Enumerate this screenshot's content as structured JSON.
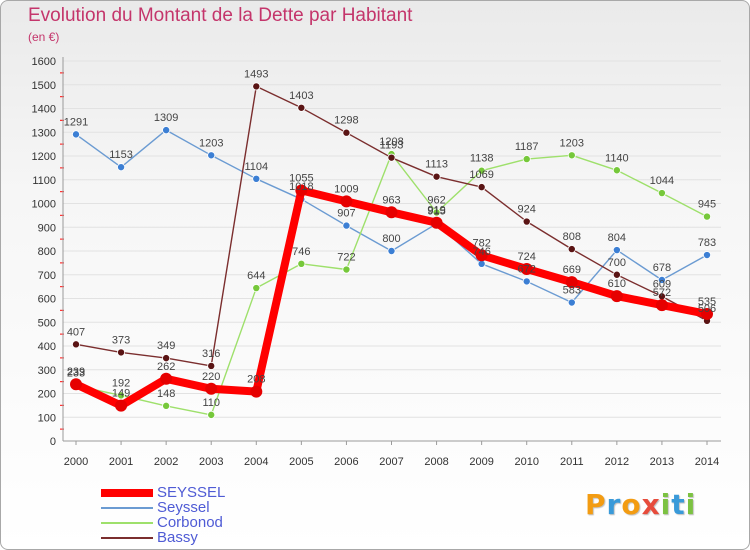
{
  "chart_data": {
    "type": "line",
    "title": "Evolution du Montant de la Dette par Habitant",
    "subtitle": "(en €)",
    "xlabel": "",
    "ylabel": "",
    "categories": [
      "2000",
      "2001",
      "2002",
      "2003",
      "2004",
      "2005",
      "2006",
      "2007",
      "2008",
      "2009",
      "2010",
      "2011",
      "2012",
      "2013",
      "2014"
    ],
    "ylim": [
      0,
      1600
    ],
    "yticks": [
      0,
      100,
      200,
      300,
      400,
      500,
      600,
      700,
      800,
      900,
      1000,
      1100,
      1200,
      1300,
      1400,
      1500,
      1600
    ],
    "grid": true,
    "data_labels": true,
    "legend_position": "bottom-left",
    "series": [
      {
        "name": "SEYSSEL",
        "color": "#ff0000",
        "marker_color": "#e60000",
        "values": [
          239,
          149,
          262,
          220,
          208,
          1055,
          1009,
          963,
          919,
          782,
          724,
          669,
          610,
          572,
          535
        ]
      },
      {
        "name": "Seyssel",
        "color": "#6b9bd2",
        "marker_color": "#3c7fd4",
        "values": [
          1291,
          1153,
          1309,
          1203,
          1104,
          1018,
          907,
          800,
          915,
          746,
          672,
          583,
          804,
          678,
          783
        ]
      },
      {
        "name": "Corbonod",
        "color": "#9ee06b",
        "marker_color": "#76c83a",
        "values": [
          233,
          192,
          148,
          110,
          644,
          746,
          722,
          1208,
          962,
          1138,
          1187,
          1203,
          1140,
          1044,
          945
        ]
      },
      {
        "name": "Bassy",
        "color": "#7b2e2e",
        "marker_color": "#5a1414",
        "values": [
          407,
          373,
          349,
          316,
          1493,
          1403,
          1298,
          1193,
          1113,
          1069,
          924,
          808,
          700,
          609,
          506
        ]
      }
    ]
  },
  "colors": {
    "title": "#c4356b",
    "axis": "#9a9a9a",
    "grid": "#e2e2e2",
    "minor_tick": "#ff3030",
    "legend_text": "#4f5bd5"
  },
  "logo": {
    "text": "Proxiti",
    "letter_colors": [
      "#f39c12",
      "#3a9ad9",
      "#f39c12",
      "#e74c3c",
      "#7cc242",
      "#3a9ad9",
      "#7cc242"
    ]
  }
}
